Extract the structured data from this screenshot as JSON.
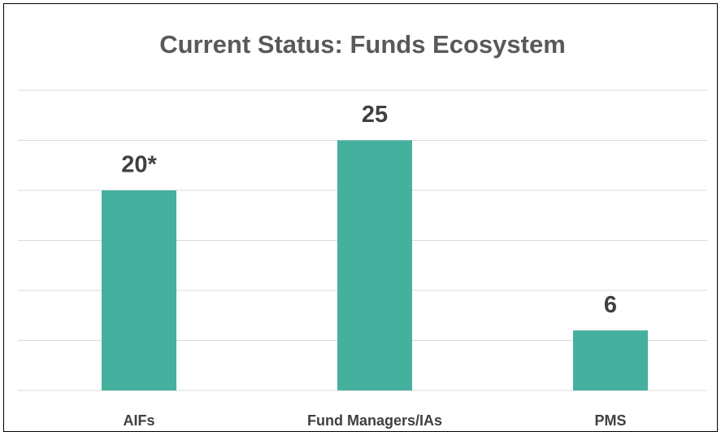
{
  "chart_data": {
    "type": "bar",
    "title": "Current Status: Funds Ecosystem",
    "categories": [
      "AIFs",
      "Fund Managers/IAs",
      "PMS"
    ],
    "values": [
      20,
      25,
      6
    ],
    "value_labels": [
      "20*",
      "25",
      "6"
    ],
    "color": "#45b09e",
    "ylim": [
      0,
      30
    ],
    "yticks": [
      0,
      5,
      10,
      15,
      20,
      25,
      30
    ],
    "grid": true
  }
}
